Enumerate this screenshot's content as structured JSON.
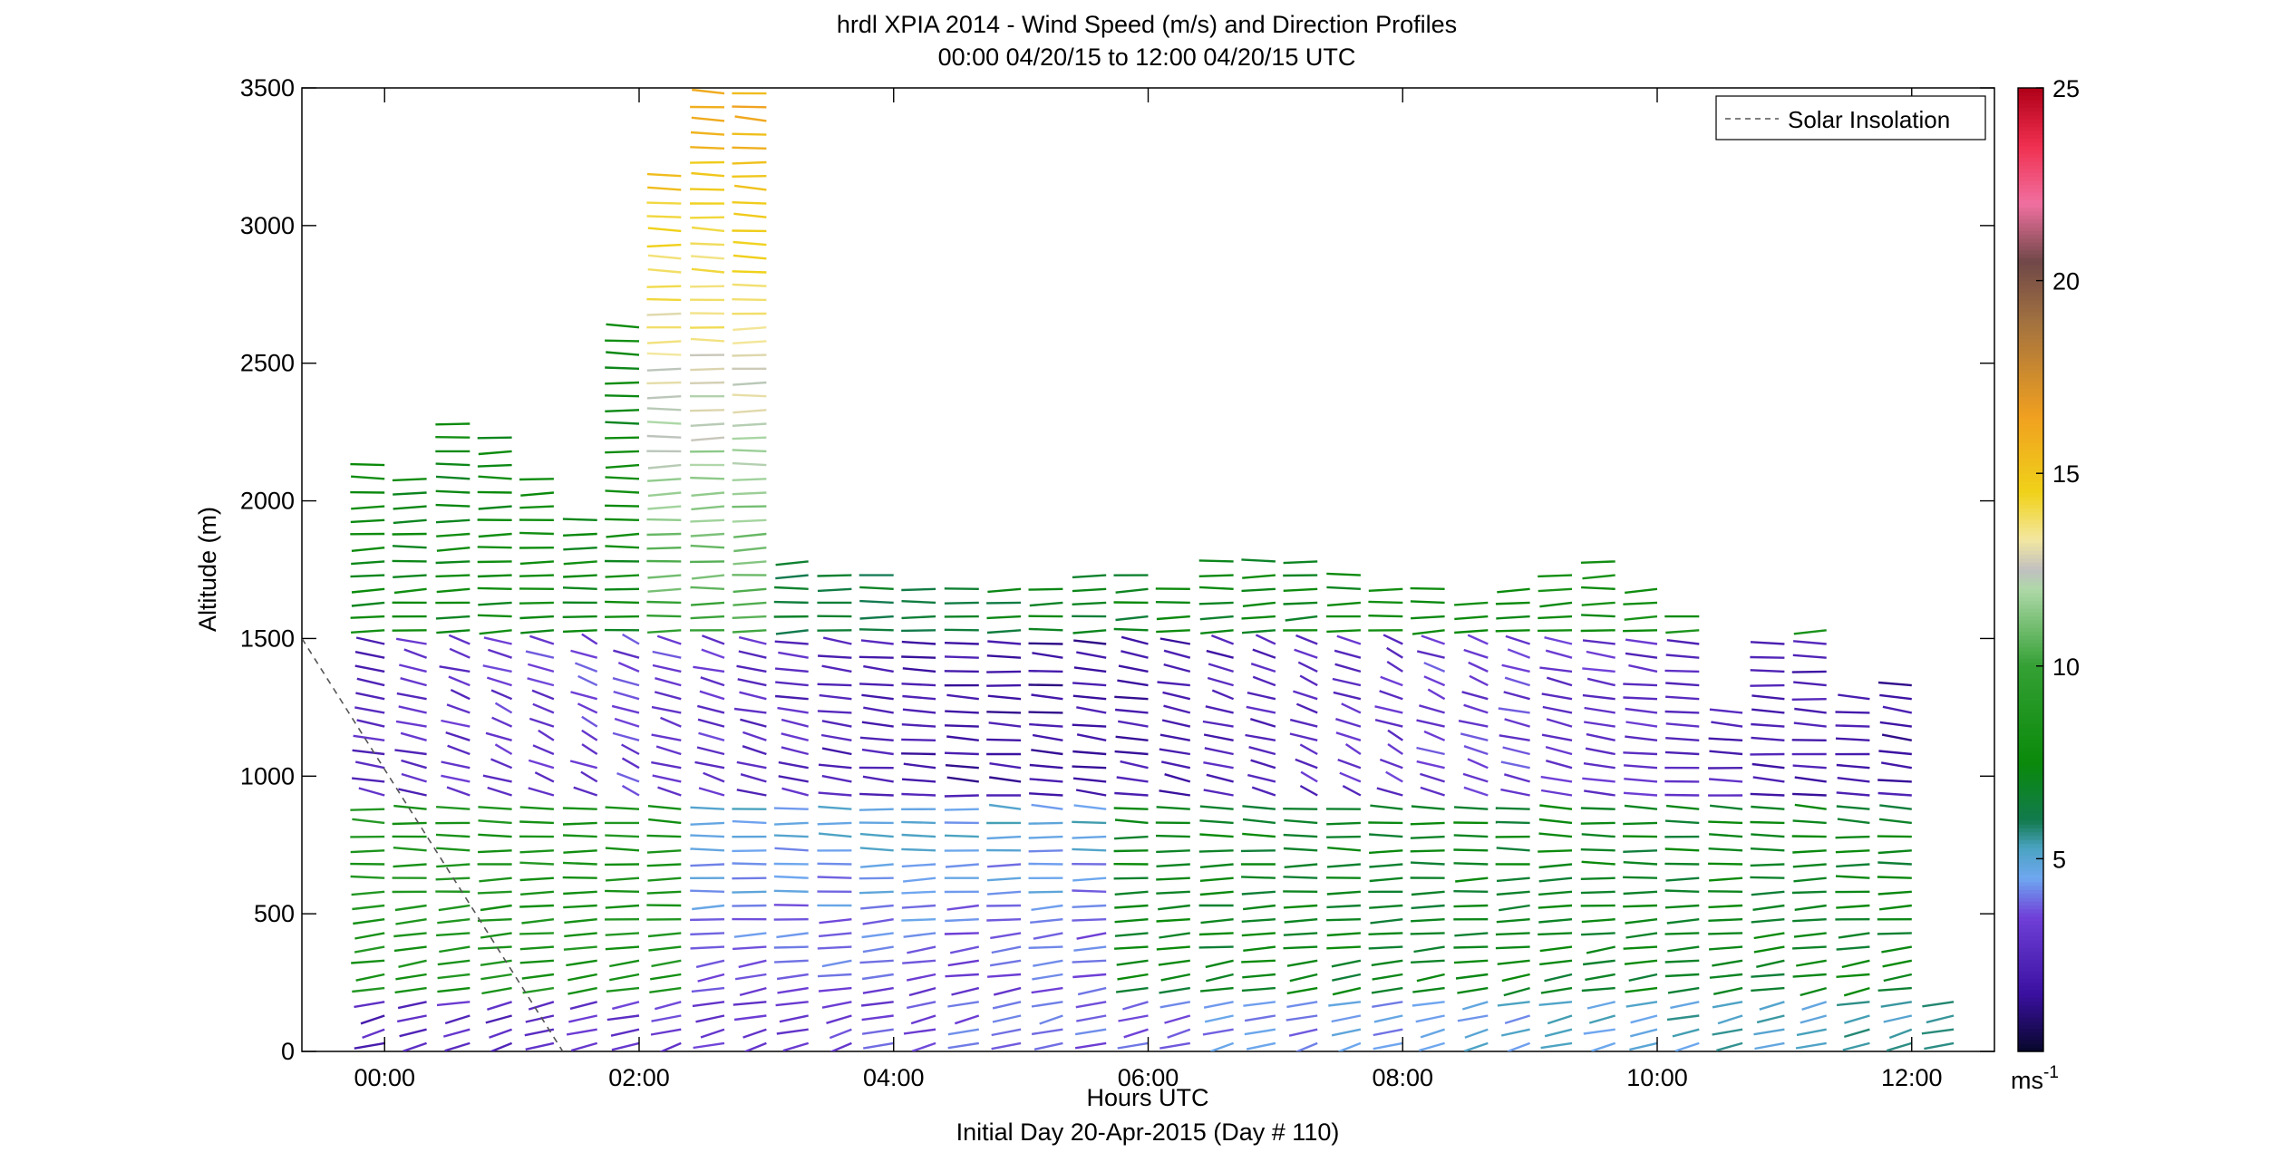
{
  "figure": {
    "title_line1": "hrdl XPIA 2014 - Wind Speed (m/s) and Direction Profiles",
    "title_line2": "00:00 04/20/15 to 12:00 04/20/15  UTC",
    "xlabel": "Hours UTC",
    "footer": "Initial Day 20-Apr-2015 (Day # 110)",
    "ylabel": "Altitude (m)",
    "legend_label": "Solar Insolation",
    "colorbar_unit_base": "ms",
    "colorbar_unit_exp": "-1"
  },
  "chart_data": {
    "type": "wind-barb profile",
    "xlim_hours": [
      -0.65,
      12.65
    ],
    "ylim": [
      0,
      3500
    ],
    "xticks_hours": [
      0,
      2,
      4,
      6,
      8,
      10,
      12
    ],
    "xtick_labels": [
      "00:00",
      "02:00",
      "04:00",
      "06:00",
      "08:00",
      "10:00",
      "12:00"
    ],
    "yticks": [
      0,
      500,
      1000,
      1500,
      2000,
      2500,
      3000,
      3500
    ],
    "ytick_labels": [
      "0",
      "500",
      "1000",
      "1500",
      "2000",
      "2500",
      "3000",
      "3500"
    ],
    "colorbar": {
      "range": [
        0,
        25
      ],
      "ticks": [
        5,
        10,
        15,
        20,
        25
      ],
      "tick_labels": [
        "5",
        "10",
        "15",
        "20",
        "25"
      ]
    },
    "legend_position": "top-right",
    "solar_insolation": {
      "style": "dashed",
      "color": "#555555",
      "x": [
        -0.65,
        1.4
      ],
      "y": [
        1500,
        0
      ]
    },
    "profile_times_hours": [
      0,
      0.33,
      0.67,
      1.0,
      1.33,
      1.67,
      2.0,
      2.33,
      2.67,
      3.0,
      3.33,
      3.67,
      4.0,
      4.33,
      4.67,
      5.0,
      5.33,
      5.67,
      6.0,
      6.33,
      6.67,
      7.0,
      7.33,
      7.67,
      8.0,
      8.33,
      8.67,
      9.0,
      9.33,
      9.67,
      10.0,
      10.33,
      10.67,
      11.0,
      11.33,
      11.67,
      12.0,
      12.33
    ],
    "profile_tops_m": [
      2150,
      2120,
      2300,
      2250,
      2100,
      1970,
      2650,
      3200,
      3500,
      3500,
      1800,
      1770,
      1750,
      1700,
      1720,
      1700,
      1710,
      1740,
      1770,
      1720,
      1780,
      1800,
      1790,
      1760,
      1720,
      1700,
      1650,
      1700,
      1750,
      1790,
      1700,
      1600,
      1260,
      1480,
      1530,
      1300,
      1340,
      200
    ],
    "note": "Each profile is a column of wind barbs every ~50 m from the surface to the profile top; barb color encodes wind speed (m/s) on the colorbar scale."
  }
}
